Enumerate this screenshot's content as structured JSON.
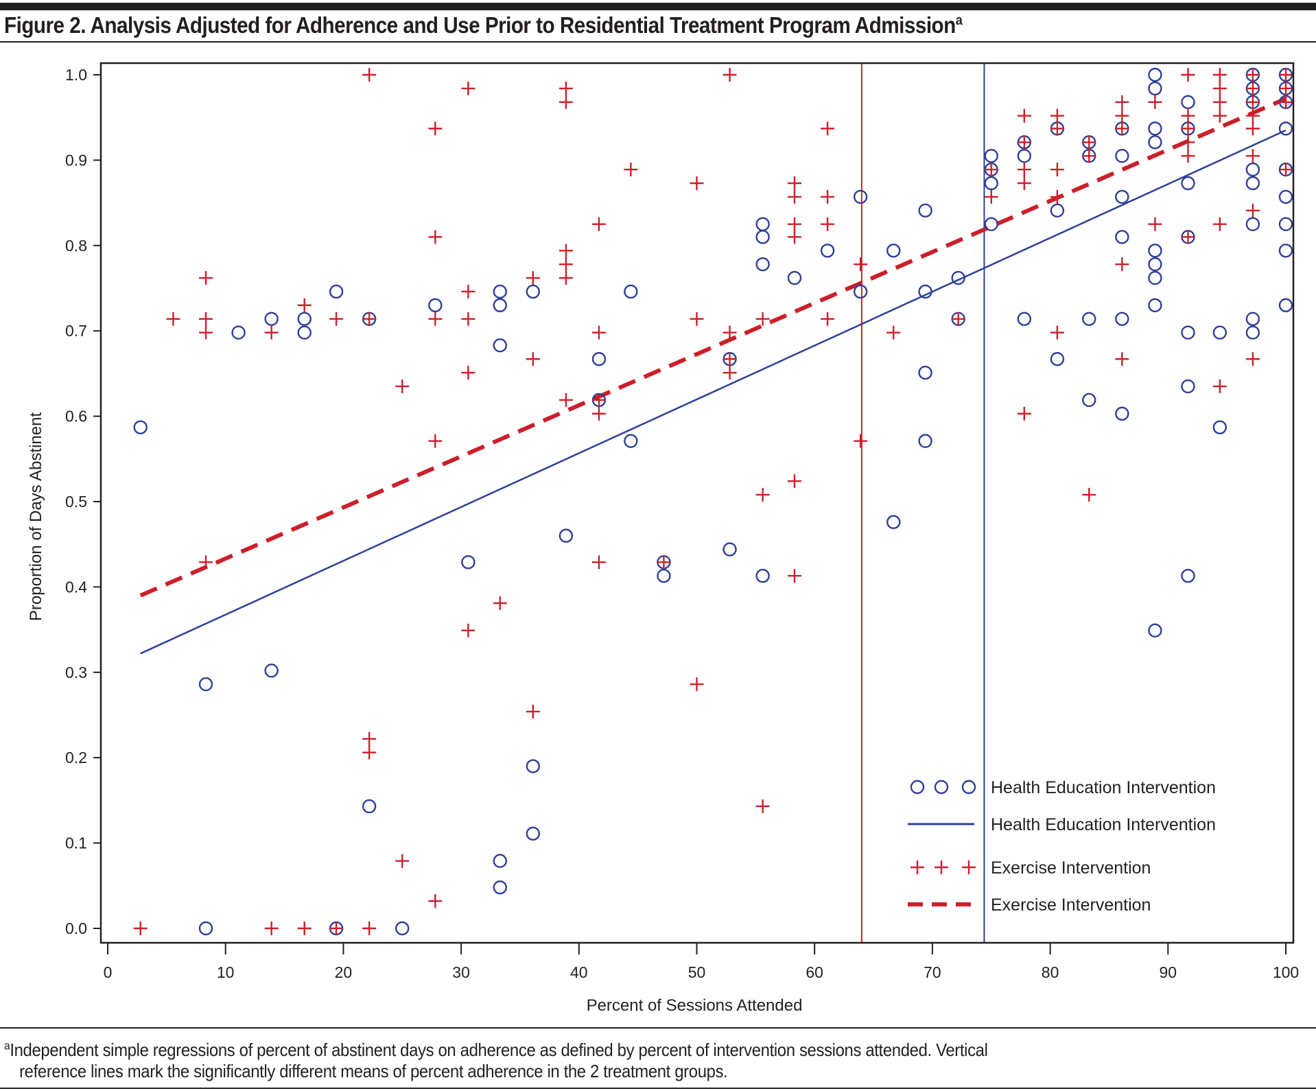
{
  "figure": {
    "title": "Figure 2. Analysis Adjusted for Adherence and Use Prior to Residential Treatment Program Admission",
    "title_superscript": "a",
    "footnote_marker": "a",
    "footnote_line1": "Independent simple regressions of percent of abstinent days on adherence as defined by percent of intervention sessions attended. Vertical",
    "footnote_line2": "reference lines mark the significantly different means of percent adherence in the 2 treatment groups."
  },
  "colors": {
    "health_education": "#2e3f98",
    "exercise": "#cc1f2a",
    "axis": "#231f20"
  },
  "chart_data": {
    "type": "scatter",
    "title": "Analysis Adjusted for Adherence and Use Prior to Residential Treatment Program Admission",
    "xlabel": "Percent of Sessions Attended",
    "ylabel": "Proportion of Days Abstinent",
    "xlim": [
      0,
      100
    ],
    "ylim": [
      0.0,
      1.0
    ],
    "xticks": [
      0,
      10,
      20,
      30,
      40,
      50,
      60,
      70,
      80,
      90,
      100
    ],
    "xtick_labels": [
      "0",
      "10",
      "20",
      "30",
      "40",
      "50",
      "60",
      "70",
      "80",
      "90",
      "100"
    ],
    "yticks": [
      0.0,
      0.1,
      0.2,
      0.3,
      0.4,
      0.5,
      0.6,
      0.7,
      0.8,
      0.9,
      1.0
    ],
    "ytick_labels": [
      "0.0",
      "0.1",
      "0.2",
      "0.3",
      "0.4",
      "0.5",
      "0.6",
      "0.7",
      "0.8",
      "0.9",
      "1.0"
    ],
    "grid": false,
    "legend_position": "bottom-right",
    "legend": [
      {
        "label": "Health Education Intervention",
        "symbol": "circle"
      },
      {
        "label": "Health Education Intervention",
        "symbol": "solid-line"
      },
      {
        "label": "Exercise Intervention",
        "symbol": "plus"
      },
      {
        "label": "Exercise Intervention",
        "symbol": "dashed-line"
      }
    ],
    "series": [
      {
        "name": "Health Education Intervention",
        "marker": "circle",
        "points": [
          [
            2.78,
            0.587
          ],
          [
            8.33,
            0.286
          ],
          [
            8.33,
            0.0
          ],
          [
            11.1,
            0.698
          ],
          [
            13.9,
            0.714
          ],
          [
            13.9,
            0.302
          ],
          [
            16.7,
            0.714
          ],
          [
            16.7,
            0.698
          ],
          [
            19.4,
            0.746
          ],
          [
            19.4,
            0.0
          ],
          [
            22.2,
            0.714
          ],
          [
            22.2,
            0.143
          ],
          [
            25.0,
            0.0
          ],
          [
            27.8,
            0.73
          ],
          [
            30.6,
            0.429
          ],
          [
            33.3,
            0.746
          ],
          [
            33.3,
            0.73
          ],
          [
            33.3,
            0.683
          ],
          [
            33.3,
            0.079
          ],
          [
            33.3,
            0.048
          ],
          [
            36.1,
            0.746
          ],
          [
            36.1,
            0.19
          ],
          [
            36.1,
            0.111
          ],
          [
            38.9,
            0.46
          ],
          [
            41.7,
            0.667
          ],
          [
            41.7,
            0.619
          ],
          [
            44.4,
            0.746
          ],
          [
            44.4,
            0.571
          ],
          [
            47.2,
            0.429
          ],
          [
            47.2,
            0.413
          ],
          [
            52.8,
            0.667
          ],
          [
            52.8,
            0.444
          ],
          [
            55.6,
            0.825
          ],
          [
            55.6,
            0.81
          ],
          [
            55.6,
            0.778
          ],
          [
            55.6,
            0.413
          ],
          [
            58.3,
            0.762
          ],
          [
            61.1,
            0.794
          ],
          [
            63.9,
            0.857
          ],
          [
            63.9,
            0.746
          ],
          [
            66.7,
            0.794
          ],
          [
            66.7,
            0.476
          ],
          [
            69.4,
            0.841
          ],
          [
            69.4,
            0.746
          ],
          [
            69.4,
            0.651
          ],
          [
            69.4,
            0.571
          ],
          [
            72.2,
            0.762
          ],
          [
            72.2,
            0.714
          ],
          [
            75.0,
            0.905
          ],
          [
            75.0,
            0.889
          ],
          [
            75.0,
            0.873
          ],
          [
            75.0,
            0.825
          ],
          [
            77.8,
            0.921
          ],
          [
            77.8,
            0.905
          ],
          [
            77.8,
            0.714
          ],
          [
            80.6,
            0.937
          ],
          [
            80.6,
            0.841
          ],
          [
            80.6,
            0.667
          ],
          [
            83.3,
            0.921
          ],
          [
            83.3,
            0.905
          ],
          [
            83.3,
            0.714
          ],
          [
            83.3,
            0.619
          ],
          [
            86.1,
            0.937
          ],
          [
            86.1,
            0.905
          ],
          [
            86.1,
            0.857
          ],
          [
            86.1,
            0.81
          ],
          [
            86.1,
            0.714
          ],
          [
            86.1,
            0.603
          ],
          [
            88.9,
            1.0
          ],
          [
            88.9,
            0.984
          ],
          [
            88.9,
            0.937
          ],
          [
            88.9,
            0.921
          ],
          [
            88.9,
            0.794
          ],
          [
            88.9,
            0.778
          ],
          [
            88.9,
            0.762
          ],
          [
            88.9,
            0.73
          ],
          [
            88.9,
            0.349
          ],
          [
            91.7,
            0.968
          ],
          [
            91.7,
            0.937
          ],
          [
            91.7,
            0.873
          ],
          [
            91.7,
            0.81
          ],
          [
            91.7,
            0.698
          ],
          [
            91.7,
            0.635
          ],
          [
            91.7,
            0.413
          ],
          [
            94.4,
            0.698
          ],
          [
            94.4,
            0.587
          ],
          [
            97.2,
            1.0
          ],
          [
            97.2,
            0.984
          ],
          [
            97.2,
            0.968
          ],
          [
            97.2,
            0.889
          ],
          [
            97.2,
            0.873
          ],
          [
            97.2,
            0.825
          ],
          [
            97.2,
            0.714
          ],
          [
            97.2,
            0.698
          ],
          [
            100,
            1.0
          ],
          [
            100,
            0.984
          ],
          [
            100,
            0.968
          ],
          [
            100,
            0.937
          ],
          [
            100,
            0.889
          ],
          [
            100,
            0.857
          ],
          [
            100,
            0.825
          ],
          [
            100,
            0.794
          ],
          [
            100,
            0.73
          ]
        ]
      },
      {
        "name": "Exercise Intervention",
        "marker": "plus",
        "points": [
          [
            2.78,
            0.0
          ],
          [
            5.56,
            0.714
          ],
          [
            8.33,
            0.762
          ],
          [
            8.33,
            0.714
          ],
          [
            8.33,
            0.698
          ],
          [
            8.33,
            0.429
          ],
          [
            13.9,
            0.698
          ],
          [
            13.9,
            0.0
          ],
          [
            16.7,
            0.73
          ],
          [
            16.7,
            0.0
          ],
          [
            19.4,
            0.714
          ],
          [
            19.4,
            0.0
          ],
          [
            22.2,
            1.0
          ],
          [
            22.2,
            0.714
          ],
          [
            22.2,
            0.222
          ],
          [
            22.2,
            0.206
          ],
          [
            22.2,
            0.0
          ],
          [
            25.0,
            0.635
          ],
          [
            25.0,
            0.079
          ],
          [
            27.8,
            0.937
          ],
          [
            27.8,
            0.81
          ],
          [
            27.8,
            0.714
          ],
          [
            27.8,
            0.571
          ],
          [
            27.8,
            0.032
          ],
          [
            30.6,
            0.984
          ],
          [
            30.6,
            0.746
          ],
          [
            30.6,
            0.714
          ],
          [
            30.6,
            0.651
          ],
          [
            30.6,
            0.349
          ],
          [
            33.3,
            0.381
          ],
          [
            36.1,
            0.762
          ],
          [
            36.1,
            0.667
          ],
          [
            36.1,
            0.254
          ],
          [
            38.9,
            0.984
          ],
          [
            38.9,
            0.968
          ],
          [
            38.9,
            0.794
          ],
          [
            38.9,
            0.778
          ],
          [
            38.9,
            0.762
          ],
          [
            38.9,
            0.619
          ],
          [
            41.7,
            0.825
          ],
          [
            41.7,
            0.698
          ],
          [
            41.7,
            0.619
          ],
          [
            41.7,
            0.603
          ],
          [
            41.7,
            0.429
          ],
          [
            44.4,
            0.889
          ],
          [
            47.2,
            0.429
          ],
          [
            50.0,
            0.873
          ],
          [
            50.0,
            0.714
          ],
          [
            50.0,
            0.286
          ],
          [
            52.8,
            1.0
          ],
          [
            52.8,
            0.698
          ],
          [
            52.8,
            0.667
          ],
          [
            52.8,
            0.651
          ],
          [
            55.6,
            0.714
          ],
          [
            55.6,
            0.508
          ],
          [
            55.6,
            0.143
          ],
          [
            58.3,
            0.873
          ],
          [
            58.3,
            0.857
          ],
          [
            58.3,
            0.825
          ],
          [
            58.3,
            0.81
          ],
          [
            58.3,
            0.524
          ],
          [
            58.3,
            0.413
          ],
          [
            61.1,
            0.937
          ],
          [
            61.1,
            0.857
          ],
          [
            61.1,
            0.825
          ],
          [
            61.1,
            0.714
          ],
          [
            63.9,
            0.778
          ],
          [
            63.9,
            0.571
          ],
          [
            66.7,
            0.698
          ],
          [
            72.2,
            0.714
          ],
          [
            75.0,
            0.889
          ],
          [
            75.0,
            0.857
          ],
          [
            77.8,
            0.952
          ],
          [
            77.8,
            0.921
          ],
          [
            77.8,
            0.889
          ],
          [
            77.8,
            0.873
          ],
          [
            77.8,
            0.603
          ],
          [
            80.6,
            0.952
          ],
          [
            80.6,
            0.937
          ],
          [
            80.6,
            0.889
          ],
          [
            80.6,
            0.857
          ],
          [
            80.6,
            0.698
          ],
          [
            83.3,
            0.921
          ],
          [
            83.3,
            0.905
          ],
          [
            83.3,
            0.508
          ],
          [
            86.1,
            0.968
          ],
          [
            86.1,
            0.952
          ],
          [
            86.1,
            0.937
          ],
          [
            86.1,
            0.778
          ],
          [
            86.1,
            0.667
          ],
          [
            88.9,
            0.968
          ],
          [
            88.9,
            0.825
          ],
          [
            91.7,
            1.0
          ],
          [
            91.7,
            0.952
          ],
          [
            91.7,
            0.937
          ],
          [
            91.7,
            0.921
          ],
          [
            91.7,
            0.905
          ],
          [
            91.7,
            0.81
          ],
          [
            94.4,
            1.0
          ],
          [
            94.4,
            0.984
          ],
          [
            94.4,
            0.968
          ],
          [
            94.4,
            0.952
          ],
          [
            94.4,
            0.825
          ],
          [
            94.4,
            0.635
          ],
          [
            97.2,
            1.0
          ],
          [
            97.2,
            0.984
          ],
          [
            97.2,
            0.968
          ],
          [
            97.2,
            0.952
          ],
          [
            97.2,
            0.937
          ],
          [
            97.2,
            0.905
          ],
          [
            97.2,
            0.841
          ],
          [
            97.2,
            0.667
          ],
          [
            100,
            1.0
          ],
          [
            100,
            0.984
          ],
          [
            100,
            0.968
          ],
          [
            100,
            0.889
          ]
        ]
      }
    ],
    "regression_lines": [
      {
        "name": "Health Education Intervention",
        "style": "solid",
        "from": [
          2.78,
          0.322
        ],
        "to": [
          100,
          0.935
        ]
      },
      {
        "name": "Exercise Intervention",
        "style": "dashed",
        "from": [
          2.78,
          0.39
        ],
        "to": [
          100,
          0.972
        ]
      }
    ],
    "reference_lines": [
      {
        "name": "Exercise Intervention mean adherence",
        "orientation": "vertical",
        "x": 64.0
      },
      {
        "name": "Health Education Intervention mean adherence",
        "orientation": "vertical",
        "x": 74.4
      }
    ]
  }
}
